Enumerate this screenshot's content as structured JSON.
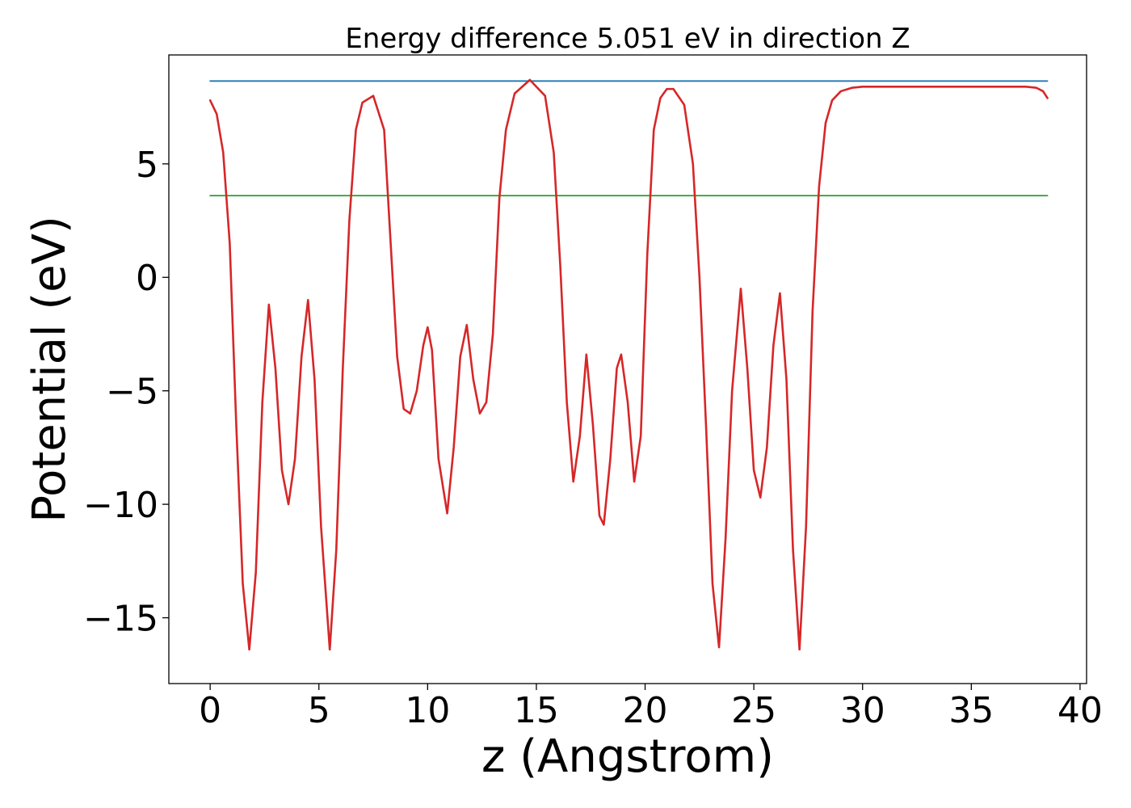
{
  "chart_data": {
    "type": "line",
    "title": "Energy difference 5.051 eV in direction Z",
    "xlabel": "z (Angstrom)",
    "ylabel": "Potential (eV)",
    "xlim": [
      -1.9,
      40.3
    ],
    "ylim": [
      -17.9,
      9.8
    ],
    "xticks": [
      0,
      5,
      10,
      15,
      20,
      25,
      30,
      35,
      40
    ],
    "xtick_labels": [
      "0",
      "5",
      "10",
      "15",
      "20",
      "25",
      "30",
      "35",
      "40"
    ],
    "yticks": [
      -15,
      -10,
      -5,
      0,
      5
    ],
    "ytick_labels": [
      "−15",
      "−10",
      "−5",
      "0",
      "5"
    ],
    "grid": false,
    "legend": false,
    "series": [
      {
        "color": "#d62728",
        "style": "solid",
        "x": [
          0,
          0.3,
          0.6,
          0.9,
          1.2,
          1.5,
          1.8,
          2.1,
          2.4,
          2.7,
          3.0,
          3.3,
          3.6,
          3.9,
          4.2,
          4.5,
          4.8,
          5.1,
          5.5,
          5.8,
          6.1,
          6.4,
          6.7,
          7.0,
          7.5,
          8.0,
          8.3,
          8.6,
          8.9,
          9.2,
          9.5,
          9.8,
          10.0,
          10.2,
          10.5,
          10.9,
          11.2,
          11.5,
          11.8,
          12.1,
          12.4,
          12.7,
          13.0,
          13.3,
          13.6,
          14.0,
          14.7,
          15.4,
          15.8,
          16.1,
          16.4,
          16.7,
          17.0,
          17.3,
          17.6,
          17.9,
          18.1,
          18.4,
          18.7,
          18.9,
          19.2,
          19.5,
          19.8,
          20.1,
          20.4,
          20.7,
          21.0,
          21.3,
          21.8,
          22.2,
          22.5,
          22.8,
          23.1,
          23.4,
          23.7,
          24.0,
          24.4,
          24.7,
          25.0,
          25.3,
          25.6,
          25.9,
          26.2,
          26.5,
          26.8,
          27.1,
          27.4,
          27.7,
          28.0,
          28.3,
          28.6,
          29.0,
          29.5,
          30.0,
          31.0,
          32.0,
          34.0,
          36.0,
          37.5,
          38.0,
          38.3,
          38.5
        ],
        "y": [
          7.8,
          7.2,
          5.5,
          1.5,
          -6.5,
          -13.5,
          -16.4,
          -13.0,
          -5.5,
          -1.2,
          -4.0,
          -8.5,
          -10.0,
          -8.0,
          -3.5,
          -1.0,
          -4.5,
          -11.0,
          -16.4,
          -12.0,
          -4.0,
          2.5,
          6.5,
          7.7,
          8.0,
          6.5,
          1.5,
          -3.5,
          -5.8,
          -6.0,
          -5.0,
          -3.0,
          -2.2,
          -3.2,
          -8.0,
          -10.4,
          -7.5,
          -3.5,
          -2.1,
          -4.5,
          -6.0,
          -5.5,
          -2.5,
          3.5,
          6.5,
          8.1,
          8.7,
          8.0,
          5.5,
          0.5,
          -5.5,
          -9.0,
          -7.0,
          -3.4,
          -6.5,
          -10.5,
          -10.9,
          -8.0,
          -4.0,
          -3.4,
          -5.5,
          -9.0,
          -7.0,
          1.0,
          6.5,
          7.9,
          8.3,
          8.3,
          7.6,
          5.0,
          0.0,
          -6.5,
          -13.5,
          -16.3,
          -11.5,
          -5.0,
          -0.5,
          -4.0,
          -8.5,
          -9.7,
          -7.5,
          -3.0,
          -0.7,
          -4.5,
          -12.0,
          -16.4,
          -11.0,
          -1.5,
          4.0,
          6.8,
          7.8,
          8.2,
          8.35,
          8.4,
          8.4,
          8.4,
          8.4,
          8.4,
          8.4,
          8.35,
          8.2,
          7.9
        ]
      },
      {
        "color": "#1f77b4",
        "style": "solid",
        "x": [
          0,
          38.5
        ],
        "y": [
          8.65,
          8.65
        ]
      },
      {
        "color": "#2ca02c",
        "style": "solid",
        "x": [
          0,
          38.5
        ],
        "y": [
          3.6,
          3.6
        ]
      }
    ]
  }
}
